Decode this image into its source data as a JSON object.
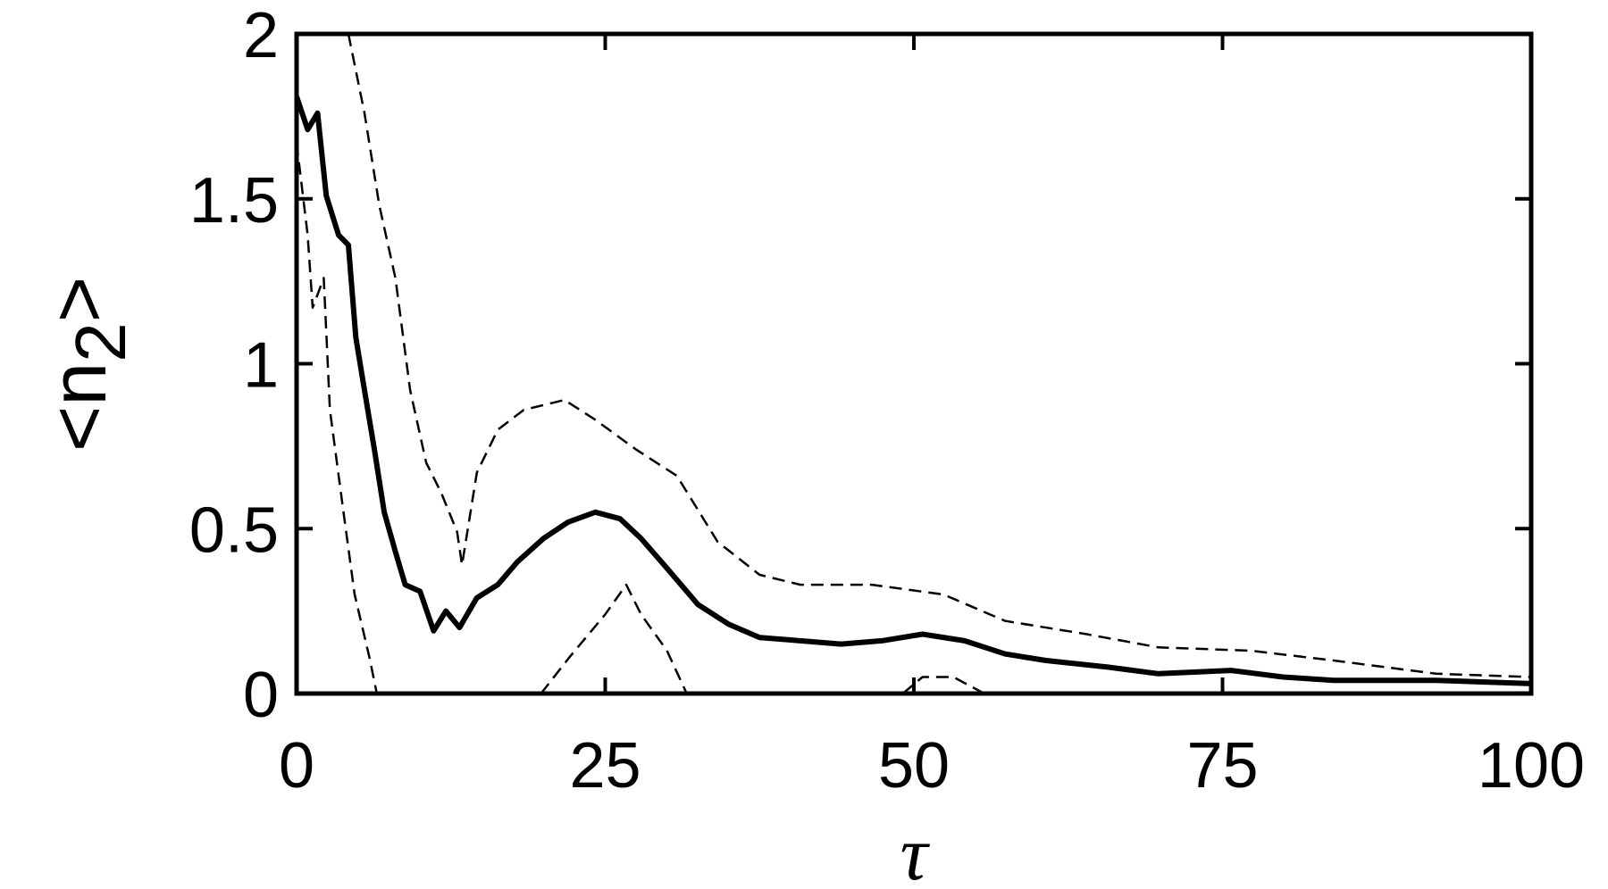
{
  "chart_data": {
    "type": "line",
    "xlabel": "τ",
    "ylabel": [
      "<n",
      "2",
      ">"
    ],
    "xlim": [
      0,
      100
    ],
    "ylim": [
      0,
      2
    ],
    "xticks": [
      0,
      25,
      50,
      75,
      100
    ],
    "yticks": [
      0,
      0.5,
      1,
      1.5,
      2
    ],
    "series": [
      {
        "color": "#000000",
        "style": "solid",
        "x": [
          0,
          0.9,
          1.7,
          2.4,
          3.4,
          4.2,
          4.8,
          5.5,
          6.3,
          7.1,
          8,
          8.8,
          10,
          11.1,
          12.1,
          13.2,
          14.6,
          16.3,
          17.9,
          20,
          22,
          24.2,
          26.2,
          27.9,
          30,
          32.5,
          35,
          37.5,
          40.8,
          44.1,
          47.4,
          50.7,
          54.1,
          57.4,
          60.7,
          65.7,
          69.8,
          75.7,
          79.9,
          84,
          92.3,
          100
        ],
        "values": [
          1.81,
          1.71,
          1.76,
          1.51,
          1.39,
          1.36,
          1.08,
          0.92,
          0.74,
          0.55,
          0.43,
          0.33,
          0.31,
          0.19,
          0.25,
          0.2,
          0.29,
          0.33,
          0.4,
          0.47,
          0.52,
          0.55,
          0.53,
          0.47,
          0.38,
          0.27,
          0.21,
          0.17,
          0.16,
          0.15,
          0.16,
          0.18,
          0.16,
          0.12,
          0.1,
          0.08,
          0.06,
          0.07,
          0.05,
          0.04,
          0.04,
          0.03
        ]
      },
      {
        "color": "#000000",
        "style": "dashed",
        "x": [
          4.2,
          5.5,
          6.7,
          8,
          9.2,
          10.5,
          11.7,
          13,
          13.4,
          14.6,
          16.3,
          18.4,
          21.7,
          24.2,
          27.5,
          30.8,
          34.1,
          37.5,
          40.8,
          46.6,
          52.4,
          57.4,
          64,
          69.8,
          77.3,
          84,
          92.3,
          100
        ],
        "values": [
          2,
          1.76,
          1.48,
          1.26,
          0.92,
          0.7,
          0.61,
          0.49,
          0.39,
          0.67,
          0.8,
          0.86,
          0.89,
          0.83,
          0.74,
          0.66,
          0.46,
          0.36,
          0.33,
          0.33,
          0.3,
          0.22,
          0.18,
          0.14,
          0.13,
          0.1,
          0.06,
          0.05
        ]
      },
      {
        "color": "#000000",
        "style": "dashed",
        "x": [
          0,
          0.9,
          1.3,
          2.2,
          2.7,
          3.8,
          4.7,
          5.9,
          6.5,
          13,
          19.8,
          22.1,
          25,
          26.7,
          27.9,
          30,
          31.6,
          40,
          49.1,
          50.7,
          53.2,
          55.7
        ],
        "values": [
          1.67,
          1.39,
          1.17,
          1.26,
          0.86,
          0.55,
          0.3,
          0.11,
          0,
          null,
          0,
          0.11,
          0.24,
          0.33,
          0.24,
          0.13,
          0,
          null,
          0,
          0.05,
          0.05,
          0
        ]
      }
    ]
  }
}
